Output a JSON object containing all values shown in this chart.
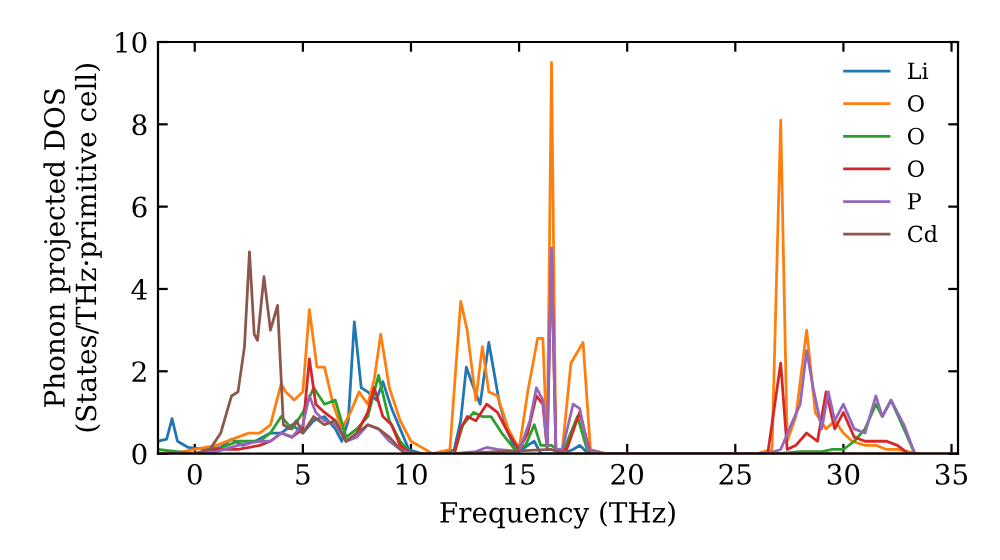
{
  "chart_data": {
    "type": "line",
    "xlabel": "Frequency (THz)",
    "ylabel": "Phonon projected DOS\n(States/THz·primitive cell)",
    "xlim": [
      -1.7,
      35.3
    ],
    "ylim": [
      0,
      10
    ],
    "xticks": [
      0,
      5,
      10,
      15,
      20,
      25,
      30,
      35
    ],
    "yticks": [
      0,
      2,
      4,
      6,
      8,
      10
    ],
    "grid": false,
    "legend": "top right",
    "marker": "none",
    "line_style": "solid",
    "series": [
      {
        "name": "Li",
        "color": "#1f77b4",
        "x": [
          -1.7,
          -1.3,
          -1.05,
          -0.8,
          -0.3,
          0.5,
          1.2,
          1.7,
          2.2,
          2.8,
          3.5,
          4.0,
          4.5,
          5.0,
          5.5,
          6.0,
          6.5,
          6.8,
          7.1,
          7.38,
          7.7,
          8.0,
          8.4,
          8.7,
          9.1,
          9.5,
          9.9,
          10.5,
          11.5,
          12.0,
          12.3,
          12.56,
          12.9,
          13.2,
          13.6,
          14.1,
          14.5,
          14.9,
          15.4,
          15.7,
          16.0,
          16.5,
          17.0,
          17.5,
          17.8,
          18.2,
          19
        ],
        "values": [
          0.3,
          0.35,
          0.85,
          0.3,
          0.15,
          0.1,
          0.15,
          0.35,
          0.2,
          0.3,
          0.5,
          0.5,
          0.7,
          0.5,
          0.8,
          0.9,
          0.6,
          0.3,
          0.8,
          3.2,
          1.6,
          1.5,
          1.3,
          1.75,
          1.1,
          0.6,
          0.1,
          0,
          0,
          0.1,
          0.8,
          2.1,
          1.6,
          1.2,
          2.7,
          1.2,
          0.5,
          0,
          0.2,
          0.3,
          0,
          0,
          0,
          0.1,
          0.2,
          0,
          0
        ]
      },
      {
        "name": "O",
        "color": "#ff7f0e",
        "x": [
          -1.7,
          -1,
          0,
          1,
          2,
          2.5,
          3,
          3.5,
          4,
          4.2,
          4.6,
          5.0,
          5.3,
          5.65,
          6.0,
          6.4,
          6.8,
          7.2,
          7.6,
          8.0,
          8.3,
          8.6,
          9.0,
          9.5,
          10,
          11,
          11.8,
          12.3,
          12.6,
          13.0,
          13.3,
          13.6,
          14.0,
          14.5,
          15.0,
          15.4,
          15.86,
          16.1,
          16.3,
          16.5,
          16.7,
          17.0,
          17.4,
          17.96,
          18.3,
          19,
          26,
          26.7,
          27.1,
          27.4,
          27.8,
          28.3,
          28.7,
          29.2,
          29.6,
          30.0,
          30.4,
          31,
          31.5,
          32,
          32.5,
          33,
          33.5
        ],
        "values": [
          0,
          0,
          0.1,
          0.2,
          0.4,
          0.5,
          0.5,
          0.7,
          1.7,
          1.5,
          1.3,
          1.5,
          3.5,
          2.1,
          2.1,
          1.2,
          0.6,
          1.0,
          1.5,
          1.2,
          1.8,
          2.9,
          1.6,
          0.8,
          0.3,
          0,
          0.1,
          3.7,
          3.0,
          1.3,
          2.6,
          1.5,
          1.4,
          0.6,
          0.1,
          1.5,
          2.8,
          2.8,
          0.1,
          9.5,
          0.1,
          0.1,
          2.2,
          2.7,
          0.1,
          0,
          0,
          0.1,
          8.1,
          0.3,
          0.9,
          3.0,
          1.0,
          0.6,
          0.8,
          0.5,
          0.3,
          0.2,
          0.2,
          0.1,
          0.1,
          0.05,
          0
        ]
      },
      {
        "name": "O",
        "color": "#2ca02c",
        "x": [
          -1.7,
          0,
          1,
          2,
          3,
          3.5,
          4,
          4.5,
          5,
          5.5,
          6,
          6.5,
          7,
          7.5,
          8,
          8.5,
          9,
          9.5,
          10,
          12,
          12.4,
          12.9,
          13.3,
          13.7,
          14.2,
          14.8,
          15.3,
          15.7,
          16.0,
          16.5,
          17,
          17.7,
          18.2,
          19,
          27,
          28,
          29,
          29.5,
          30,
          30.5,
          31,
          31.5,
          31.8,
          32.2,
          32.8,
          33.3
        ],
        "values": [
          0.1,
          0,
          0.1,
          0.3,
          0.3,
          0.5,
          0.9,
          0.6,
          1.0,
          1.6,
          1.2,
          1.3,
          0.4,
          0.6,
          0.9,
          1.9,
          0.8,
          0.3,
          0,
          0,
          0.7,
          1.0,
          0.9,
          0.9,
          0.5,
          0.1,
          0.2,
          0.7,
          0.2,
          0.2,
          0,
          0.9,
          0,
          0,
          0,
          0.05,
          0.05,
          0.1,
          0.1,
          0.3,
          0.6,
          1.2,
          0.9,
          1.3,
          0.6,
          0
        ]
      },
      {
        "name": "O",
        "color": "#d62728",
        "x": [
          -1.7,
          0,
          1,
          2,
          3,
          3.5,
          4,
          4.5,
          5,
          5.3,
          5.6,
          6,
          6.5,
          7,
          7.5,
          8,
          8.3,
          8.7,
          9.1,
          9.5,
          10,
          12,
          12.3,
          12.6,
          13,
          13.5,
          14,
          14.5,
          15,
          15.4,
          15.8,
          16.1,
          16.3,
          16.5,
          16.7,
          17.2,
          17.8,
          18.3,
          19,
          26.5,
          27.1,
          27.4,
          27.8,
          28.3,
          28.8,
          29.2,
          29.6,
          30,
          30.5,
          31,
          32,
          32.5,
          33
        ],
        "values": [
          0,
          0,
          0.1,
          0.1,
          0.2,
          0.3,
          0.5,
          0.4,
          0.6,
          2.3,
          1.2,
          1.0,
          0.8,
          0.3,
          0.5,
          1.0,
          1.6,
          0.9,
          0.7,
          0.2,
          0,
          0,
          0.6,
          0.9,
          0.8,
          1.2,
          1.0,
          0.5,
          0.1,
          0.5,
          1.4,
          1.2,
          0.1,
          4.9,
          0.1,
          0.1,
          1.0,
          0,
          0,
          0,
          2.2,
          0.1,
          0.2,
          0.5,
          0.3,
          1.5,
          0.6,
          1.0,
          0.4,
          0.3,
          0.3,
          0.2,
          0
        ]
      },
      {
        "name": "P",
        "color": "#9467bd",
        "x": [
          -1.7,
          0,
          1,
          2,
          3,
          3.5,
          4,
          4.5,
          5,
          5.3,
          5.6,
          6,
          6.5,
          7,
          7.5,
          8,
          8.5,
          9,
          9.5,
          10,
          12,
          13,
          13.5,
          14,
          15,
          15.5,
          15.8,
          16.1,
          16.3,
          16.5,
          16.7,
          17,
          17.5,
          17.8,
          18.2,
          19,
          26.5,
          27.1,
          27.5,
          28,
          28.3,
          28.6,
          29,
          29.3,
          29.6,
          30,
          30.5,
          31,
          31.5,
          31.8,
          32.2,
          32.8,
          33.3
        ],
        "values": [
          0,
          0,
          0.05,
          0.2,
          0.3,
          0.3,
          0.5,
          0.4,
          0.7,
          1.4,
          1.0,
          0.8,
          0.7,
          0.3,
          0.4,
          0.7,
          0.6,
          0.3,
          0.1,
          0,
          0,
          0.05,
          0.15,
          0.1,
          0.05,
          0.8,
          1.6,
          1.3,
          0.1,
          5.0,
          0.1,
          0.1,
          1.2,
          1.1,
          0.1,
          0,
          0,
          0.1,
          0.6,
          1.2,
          2.5,
          1.6,
          0.6,
          1.5,
          0.8,
          1.2,
          0.6,
          0.5,
          1.4,
          0.9,
          1.3,
          0.7,
          0
        ]
      },
      {
        "name": "Cd",
        "color": "#8c564b",
        "x": [
          -1.7,
          0,
          0.7,
          1.2,
          1.7,
          2.0,
          2.3,
          2.53,
          2.75,
          2.9,
          3.2,
          3.5,
          3.83,
          4.1,
          4.4,
          4.7,
          5.0,
          5.5,
          6.0,
          6.5,
          7.0,
          7.5,
          8.0,
          8.5,
          9.0,
          9.7,
          10.5,
          12,
          16.5,
          17,
          19,
          35
        ],
        "values": [
          0,
          0,
          0.1,
          0.5,
          1.4,
          1.5,
          2.6,
          4.9,
          2.9,
          2.75,
          4.3,
          3.0,
          3.6,
          0.7,
          0.6,
          0.8,
          0.5,
          0.9,
          0.7,
          0.8,
          0.3,
          0.5,
          0.7,
          0.6,
          0.4,
          0,
          0,
          0,
          0.1,
          0,
          0,
          0
        ]
      }
    ]
  }
}
